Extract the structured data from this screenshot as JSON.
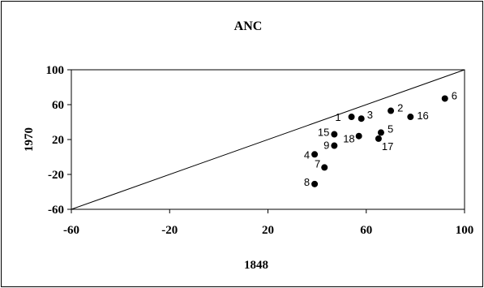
{
  "chart_data": {
    "type": "scatter",
    "title": "ANC",
    "xlabel": "1848",
    "ylabel": "1970",
    "xlim": [
      -60,
      100
    ],
    "ylim": [
      -60,
      100
    ],
    "xticks": [
      -60,
      -20,
      20,
      60,
      100
    ],
    "yticks": [
      100,
      60,
      20,
      -20,
      -60
    ],
    "x_tick_labels": [
      "-60",
      "-20",
      "20",
      "60",
      "100"
    ],
    "y_tick_labels": [
      "100",
      "60",
      "20",
      "-20",
      "-60"
    ],
    "grid": false,
    "reference_line": "y = x",
    "points": [
      {
        "label": "1",
        "x": 54,
        "y": 46
      },
      {
        "label": "2",
        "x": 70,
        "y": 53
      },
      {
        "label": "3",
        "x": 58,
        "y": 44
      },
      {
        "label": "4",
        "x": 39,
        "y": 3
      },
      {
        "label": "5",
        "x": 66,
        "y": 28
      },
      {
        "label": "6",
        "x": 92,
        "y": 67
      },
      {
        "label": "7",
        "x": 43,
        "y": -12
      },
      {
        "label": "8",
        "x": 39,
        "y": -31
      },
      {
        "label": "9",
        "x": 47,
        "y": 13
      },
      {
        "label": "15",
        "x": 47,
        "y": 26
      },
      {
        "label": "16",
        "x": 78,
        "y": 46
      },
      {
        "label": "17",
        "x": 65,
        "y": 21
      },
      {
        "label": "18",
        "x": 57,
        "y": 24
      }
    ]
  }
}
